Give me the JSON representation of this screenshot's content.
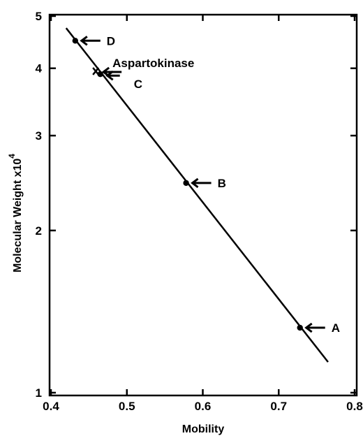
{
  "chart_data": {
    "type": "scatter",
    "title": "",
    "xlabel": "Mobility",
    "ylabel": "Molecular Weight x10",
    "ylabel_exponent": "4",
    "xlim": [
      0.4,
      0.8
    ],
    "ylim": [
      1,
      5
    ],
    "y_scale": "log",
    "grid": false,
    "x_ticks": [
      {
        "value": 0.4,
        "label": "0.4"
      },
      {
        "value": 0.5,
        "label": "0.5"
      },
      {
        "value": 0.6,
        "label": "0.6"
      },
      {
        "value": 0.7,
        "label": "0.7"
      },
      {
        "value": 0.8,
        "label": "0.8"
      }
    ],
    "y_ticks": [
      {
        "value": 1,
        "label": "1"
      },
      {
        "value": 2,
        "label": "2"
      },
      {
        "value": 3,
        "label": "3"
      },
      {
        "value": 4,
        "label": "4"
      },
      {
        "value": 5,
        "label": "5"
      }
    ],
    "points": [
      {
        "label": "D",
        "x": 0.432,
        "y": 4.5,
        "marker": "dot"
      },
      {
        "label": "C",
        "x": 0.465,
        "y": 3.9,
        "marker": "dot"
      },
      {
        "label": "B",
        "x": 0.578,
        "y": 2.45,
        "marker": "dot"
      },
      {
        "label": "A",
        "x": 0.728,
        "y": 1.32,
        "marker": "dot"
      },
      {
        "label": "Aspartokinase",
        "x": 0.459,
        "y": 3.95,
        "marker": "x"
      }
    ],
    "fit_line": {
      "x": [
        0.42,
        0.765
      ],
      "y": [
        4.75,
        1.14
      ]
    }
  }
}
